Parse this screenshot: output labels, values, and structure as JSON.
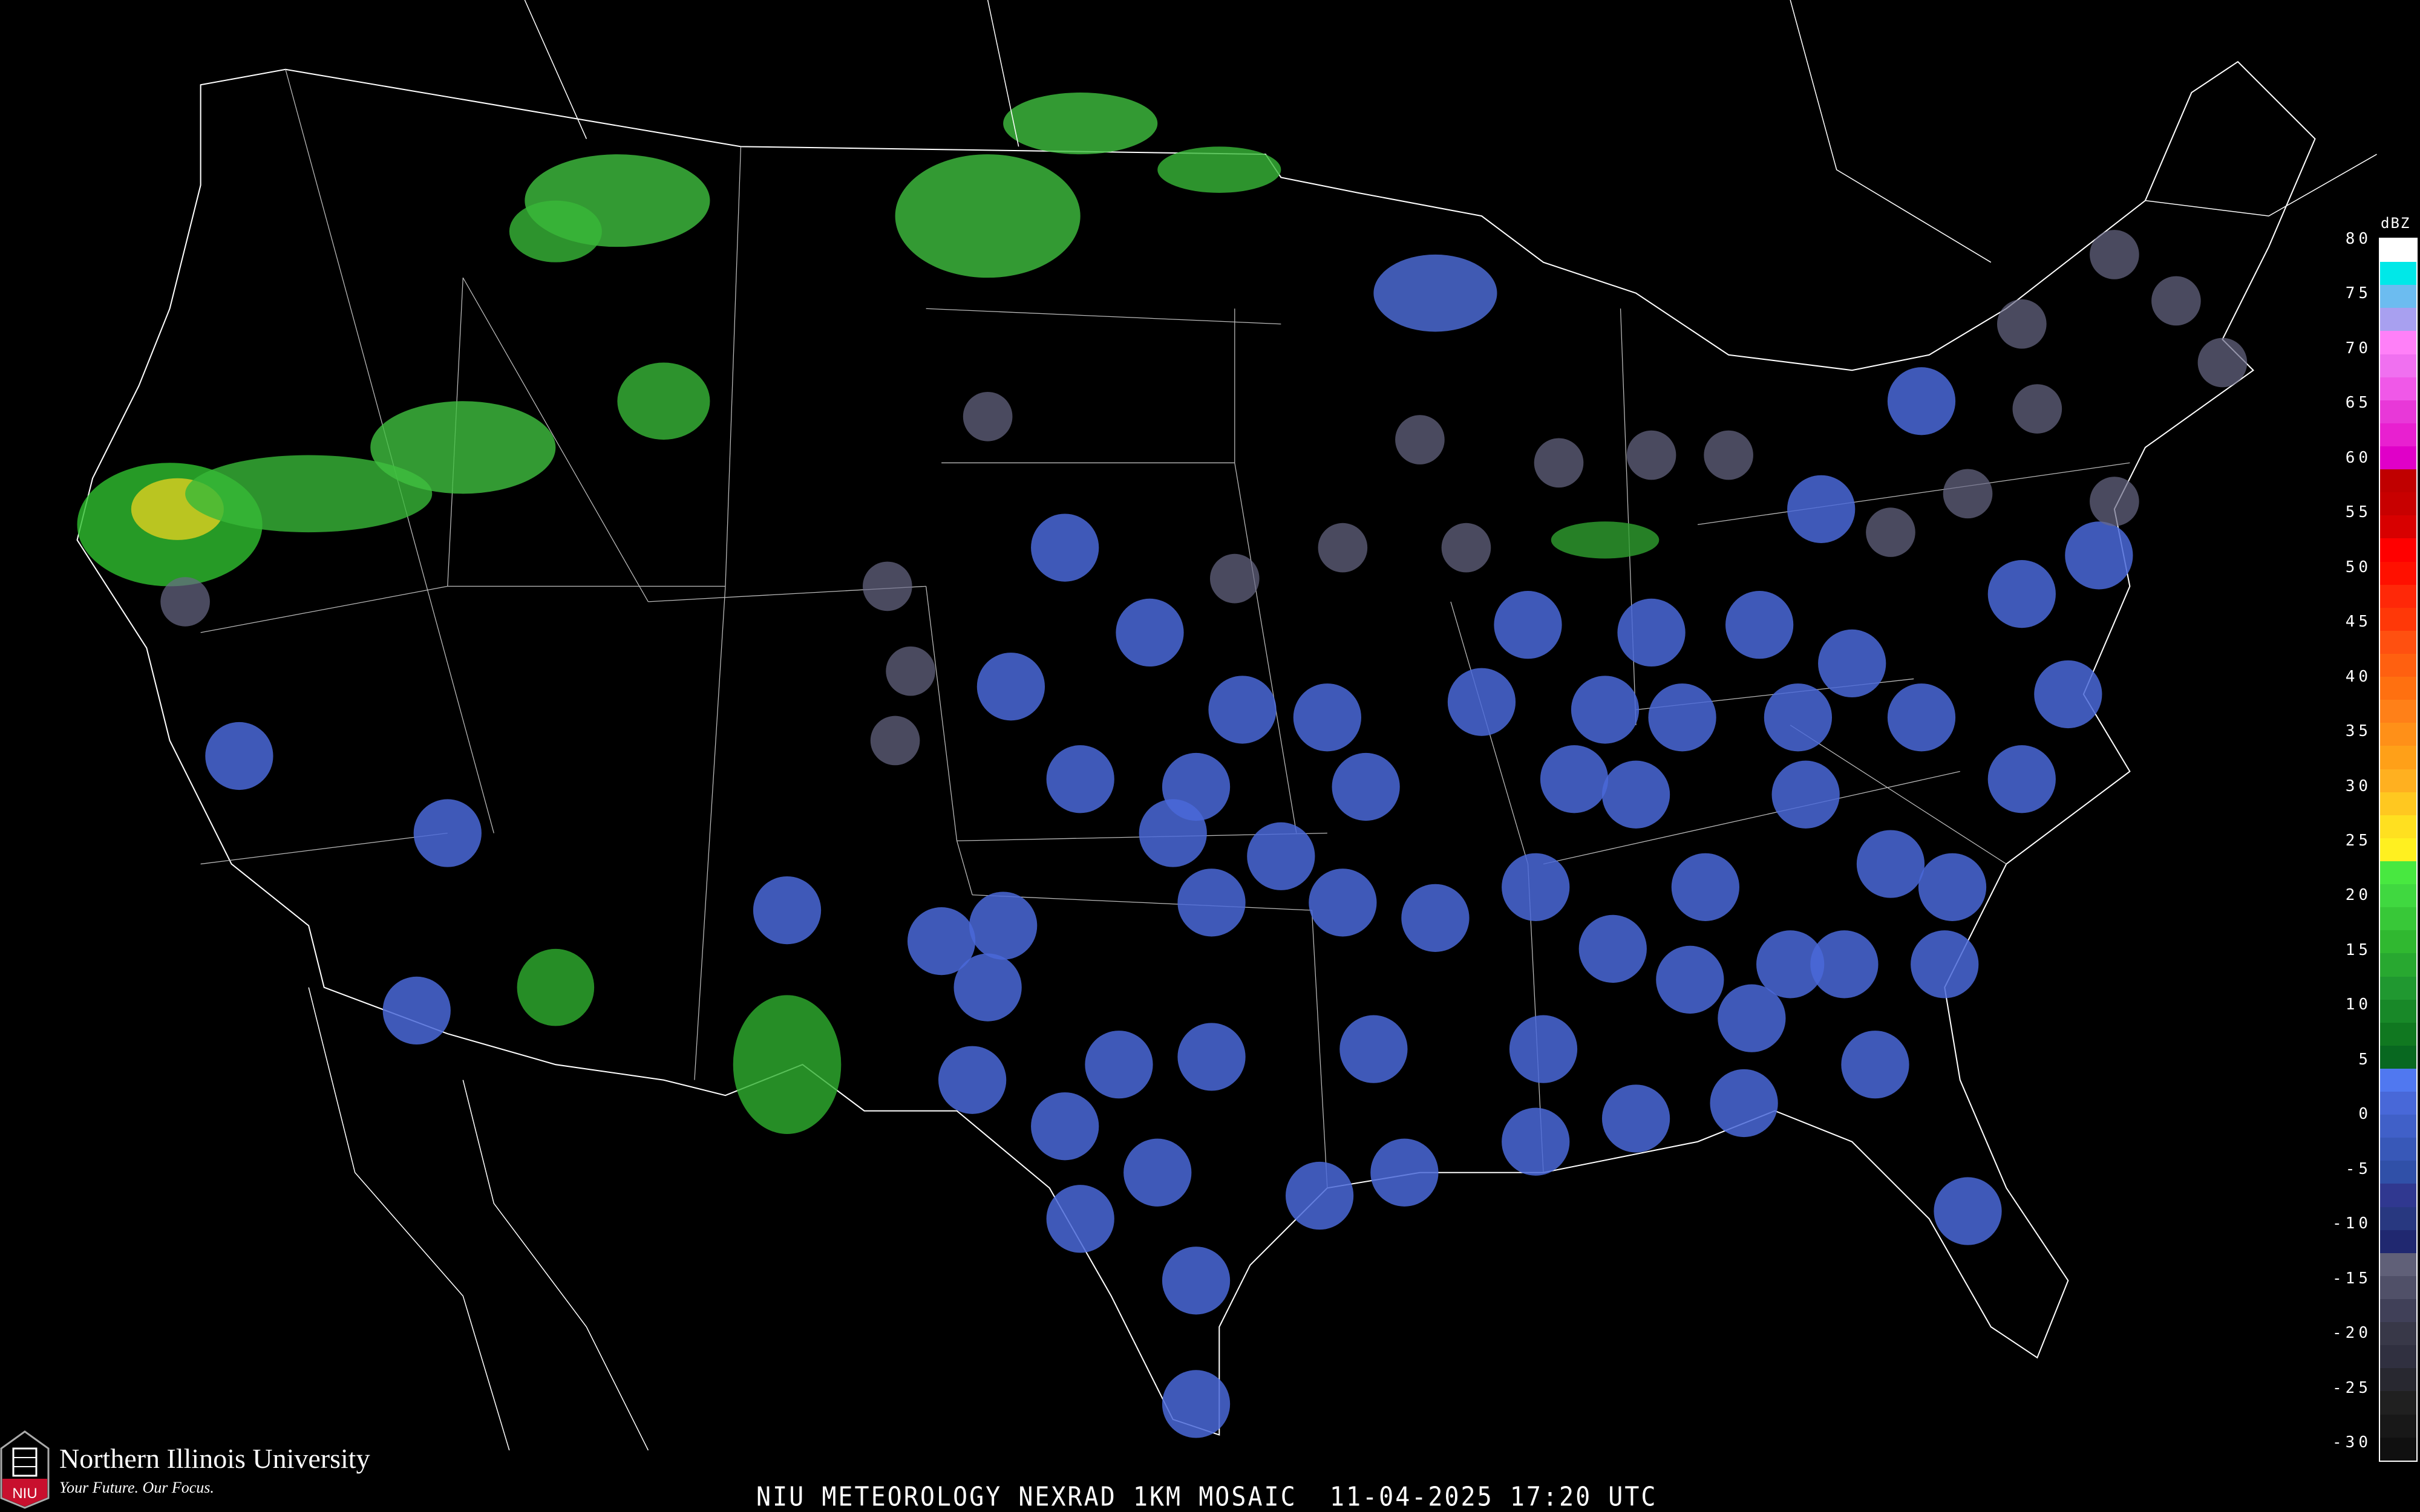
{
  "title": "NIU METEOROLOGY NEXRAD 1KM MOSAIC  11-04-2025 17:20 UTC",
  "logo": {
    "name": "Northern Illinois University",
    "tagline": "Your Future. Our Focus.",
    "mark_text": "NIU",
    "brand_color": "#c8102e"
  },
  "legend": {
    "unit": "dBZ",
    "labels": [
      "80",
      "75",
      "70",
      "65",
      "60",
      "55",
      "50",
      "45",
      "40",
      "35",
      "30",
      "25",
      "20",
      "15",
      "10",
      "5",
      "0",
      "-5",
      "-10",
      "-15",
      "-20",
      "-25",
      "-30"
    ],
    "colors": [
      "#ffffff",
      "#00e8e8",
      "#6cbcf0",
      "#a8a0f0",
      "#ff80f8",
      "#f070f0",
      "#f058e8",
      "#e838d8",
      "#e820d0",
      "#e000c8",
      "#c00000",
      "#c80000",
      "#d80000",
      "#ff0000",
      "#ff1000",
      "#ff2808",
      "#ff3808",
      "#ff5010",
      "#ff6010",
      "#ff7010",
      "#ff8018",
      "#ff9018",
      "#ffa018",
      "#ffb020",
      "#ffc820",
      "#ffe020",
      "#fff020",
      "#48e840",
      "#40d840",
      "#38c838",
      "#30b830",
      "#28a830",
      "#209830",
      "#188828",
      "#107820",
      "#086820",
      "#5078f0",
      "#4868d8",
      "#4060c8",
      "#3858b8",
      "#3050a8",
      "#303890",
      "#283880",
      "#202870",
      "#606078",
      "#505068",
      "#404058",
      "#383848",
      "#303040",
      "#282830",
      "#202020",
      "#181818",
      "#101010"
    ]
  },
  "map_colors": {
    "background": "#000000",
    "borders": "#ffffff",
    "county_lines": "#3a3a3a",
    "highways": "#8a4a20"
  }
}
